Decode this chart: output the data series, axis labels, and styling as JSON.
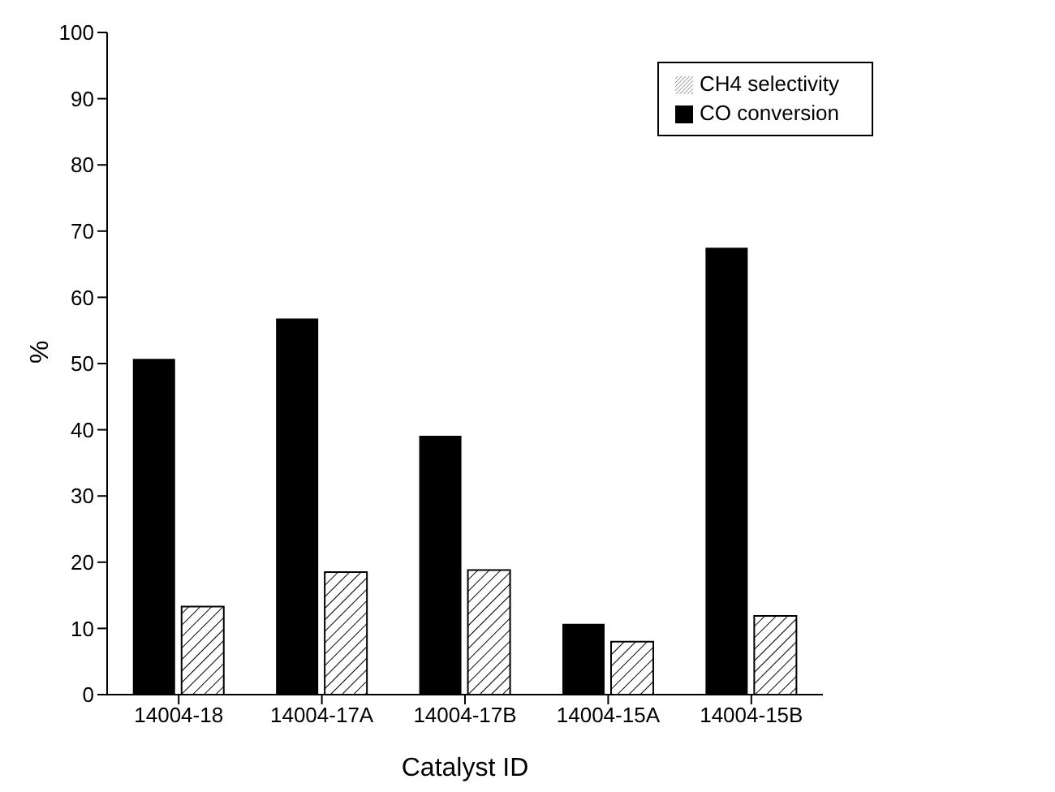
{
  "chart_data": {
    "type": "bar",
    "xlabel": "Catalyst ID",
    "ylabel": "%",
    "categories": [
      "14004-18",
      "14004-17A",
      "14004-17B",
      "14004-15A",
      "14004-15B"
    ],
    "series": [
      {
        "name": "CO conversion",
        "color": "#000000",
        "values": [
          50.7,
          56.8,
          39.1,
          10.7,
          67.5
        ]
      },
      {
        "name": "CH4 selectivity",
        "color": "#000000",
        "values": [
          13.3,
          18.5,
          18.8,
          8.0,
          11.9
        ]
      }
    ],
    "ylim": [
      0,
      100
    ],
    "yticks": [
      0,
      10,
      20,
      30,
      40,
      50,
      60,
      70,
      80,
      90,
      100
    ],
    "grid": false,
    "legend": "top right"
  }
}
